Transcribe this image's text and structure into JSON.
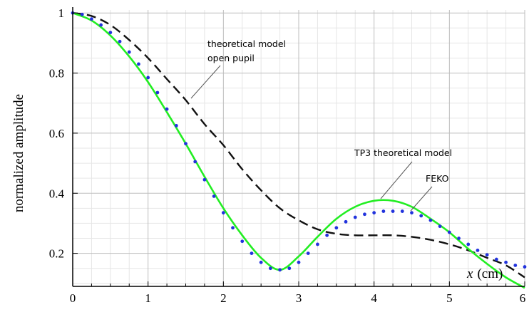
{
  "chart_data": {
    "type": "line",
    "title": "",
    "xlabel": "x (cm)",
    "xlabel_var": "x",
    "xlabel_unit": "(cm)",
    "ylabel": "normalized amplitude",
    "xlim": [
      0,
      6
    ],
    "ylim": [
      0.09,
      1.01
    ],
    "xticks": [
      "0",
      "1",
      "2",
      "3",
      "4",
      "5",
      "6"
    ],
    "yticks": [
      "0.2",
      "0.4",
      "0.6",
      "0.8",
      "1"
    ],
    "grid": true,
    "legend": "none",
    "annotations": {
      "open_pupil_line1": "theoretical model",
      "open_pupil_line2": "open pupil",
      "tp3": "TP3 theoretical model",
      "feko": "FEKO"
    },
    "series": [
      {
        "name": "theoretical model open pupil",
        "color": "#111111",
        "style": "dashed",
        "x": [
          0,
          0.25,
          0.5,
          0.75,
          1.0,
          1.25,
          1.5,
          1.75,
          2.0,
          2.25,
          2.5,
          2.75,
          3.0,
          3.25,
          3.5,
          3.75,
          4.0,
          4.25,
          4.5,
          4.75,
          5.0,
          5.25,
          5.5,
          5.75,
          6.0
        ],
        "y": [
          1.0,
          0.99,
          0.96,
          0.91,
          0.85,
          0.78,
          0.71,
          0.63,
          0.56,
          0.48,
          0.41,
          0.35,
          0.31,
          0.28,
          0.265,
          0.26,
          0.26,
          0.26,
          0.255,
          0.245,
          0.23,
          0.21,
          0.185,
          0.16,
          0.12
        ]
      },
      {
        "name": "TP3 theoretical model",
        "color": "#22ee22",
        "style": "solid",
        "x": [
          0,
          0.25,
          0.5,
          0.75,
          1.0,
          1.25,
          1.5,
          1.75,
          2.0,
          2.25,
          2.5,
          2.75,
          3.0,
          3.25,
          3.5,
          3.75,
          4.0,
          4.25,
          4.5,
          4.75,
          5.0,
          5.25,
          5.5,
          5.75,
          6.0
        ],
        "y": [
          1.0,
          0.975,
          0.925,
          0.855,
          0.77,
          0.67,
          0.565,
          0.455,
          0.35,
          0.26,
          0.185,
          0.145,
          0.19,
          0.255,
          0.315,
          0.355,
          0.375,
          0.375,
          0.355,
          0.315,
          0.27,
          0.215,
          0.165,
          0.12,
          0.085
        ]
      },
      {
        "name": "FEKO",
        "color": "#2233dd",
        "style": "dotted",
        "x": [
          0,
          0.125,
          0.25,
          0.375,
          0.5,
          0.625,
          0.75,
          0.875,
          1.0,
          1.125,
          1.25,
          1.375,
          1.5,
          1.625,
          1.75,
          1.875,
          2.0,
          2.125,
          2.25,
          2.375,
          2.5,
          2.625,
          2.75,
          2.875,
          3.0,
          3.125,
          3.25,
          3.375,
          3.5,
          3.625,
          3.75,
          3.875,
          4.0,
          4.125,
          4.25,
          4.375,
          4.5,
          4.625,
          4.75,
          4.875,
          5.0,
          5.125,
          5.25,
          5.375,
          5.5,
          5.625,
          5.75,
          5.875,
          6.0
        ],
        "y": [
          1.0,
          0.995,
          0.98,
          0.96,
          0.935,
          0.905,
          0.87,
          0.83,
          0.785,
          0.735,
          0.68,
          0.625,
          0.565,
          0.505,
          0.445,
          0.39,
          0.335,
          0.285,
          0.24,
          0.2,
          0.17,
          0.15,
          0.145,
          0.15,
          0.17,
          0.2,
          0.23,
          0.26,
          0.285,
          0.305,
          0.32,
          0.33,
          0.335,
          0.34,
          0.34,
          0.34,
          0.335,
          0.325,
          0.31,
          0.29,
          0.27,
          0.25,
          0.23,
          0.21,
          0.195,
          0.18,
          0.17,
          0.16,
          0.155
        ]
      }
    ]
  }
}
